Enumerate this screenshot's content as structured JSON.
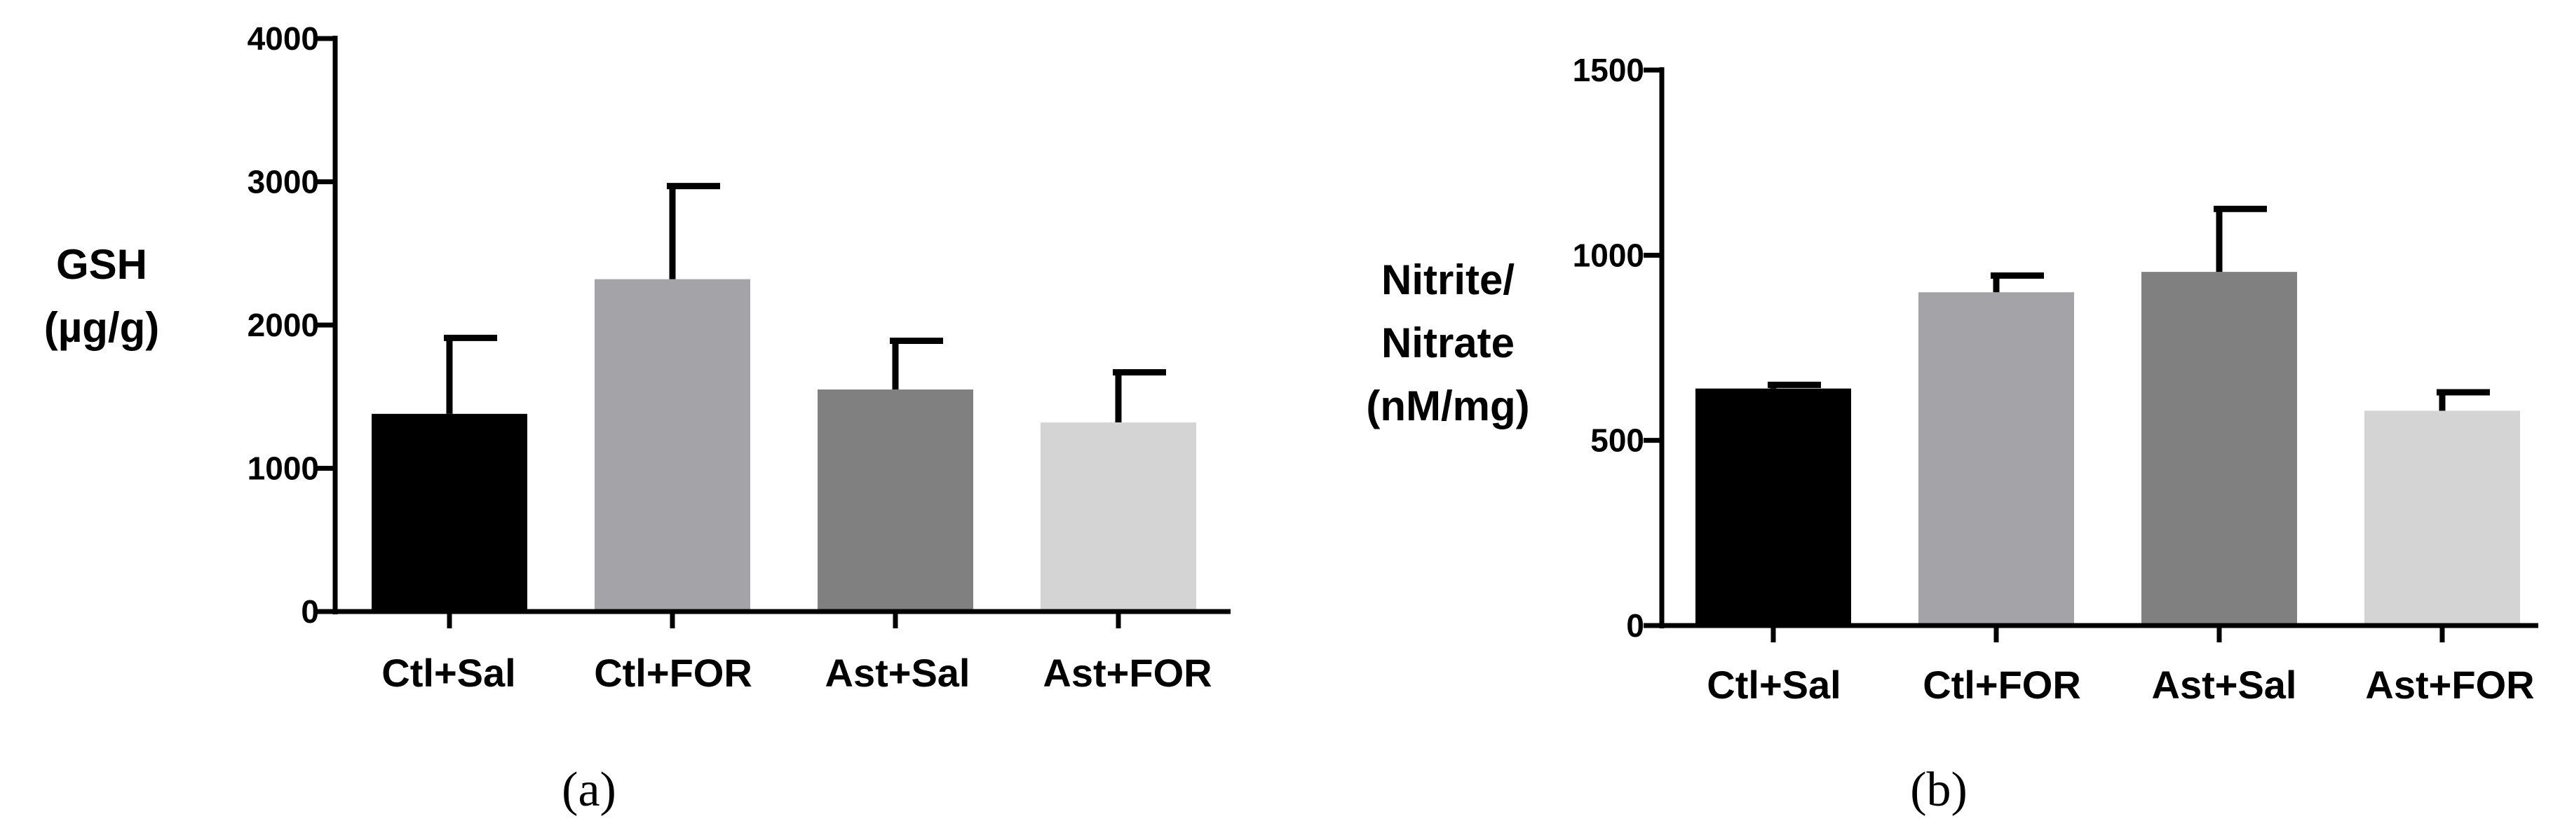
{
  "chart_data": [
    {
      "type": "bar",
      "panel_label": "(a)",
      "ylabel_lines": [
        "GSH",
        "(µg/g)"
      ],
      "categories": [
        "Ctl+Sal",
        "Ctl+FOR",
        "Ast+Sal",
        "Ast+FOR"
      ],
      "values": [
        1380,
        2320,
        1550,
        1320
      ],
      "errors": [
        530,
        650,
        340,
        350
      ],
      "colors": [
        "#000000",
        "#a3a3a8",
        "#808080",
        "#d4d4d4"
      ],
      "ylim": [
        0,
        4000
      ],
      "yticks": [
        0,
        1000,
        2000,
        3000,
        4000
      ],
      "grid": false
    },
    {
      "type": "bar",
      "panel_label": "(b)",
      "ylabel_lines": [
        "Nitrite/",
        "Nitrate",
        "(nM/mg)"
      ],
      "categories": [
        "Ctl+Sal",
        "Ctl+FOR",
        "Ast+Sal",
        "Ast+FOR"
      ],
      "values": [
        640,
        900,
        955,
        580
      ],
      "errors": [
        10,
        45,
        170,
        50
      ],
      "colors": [
        "#000000",
        "#a3a3a8",
        "#808080",
        "#d4d4d4"
      ],
      "ylim": [
        0,
        1500
      ],
      "yticks": [
        0,
        500,
        1000,
        1500
      ],
      "grid": false
    }
  ]
}
